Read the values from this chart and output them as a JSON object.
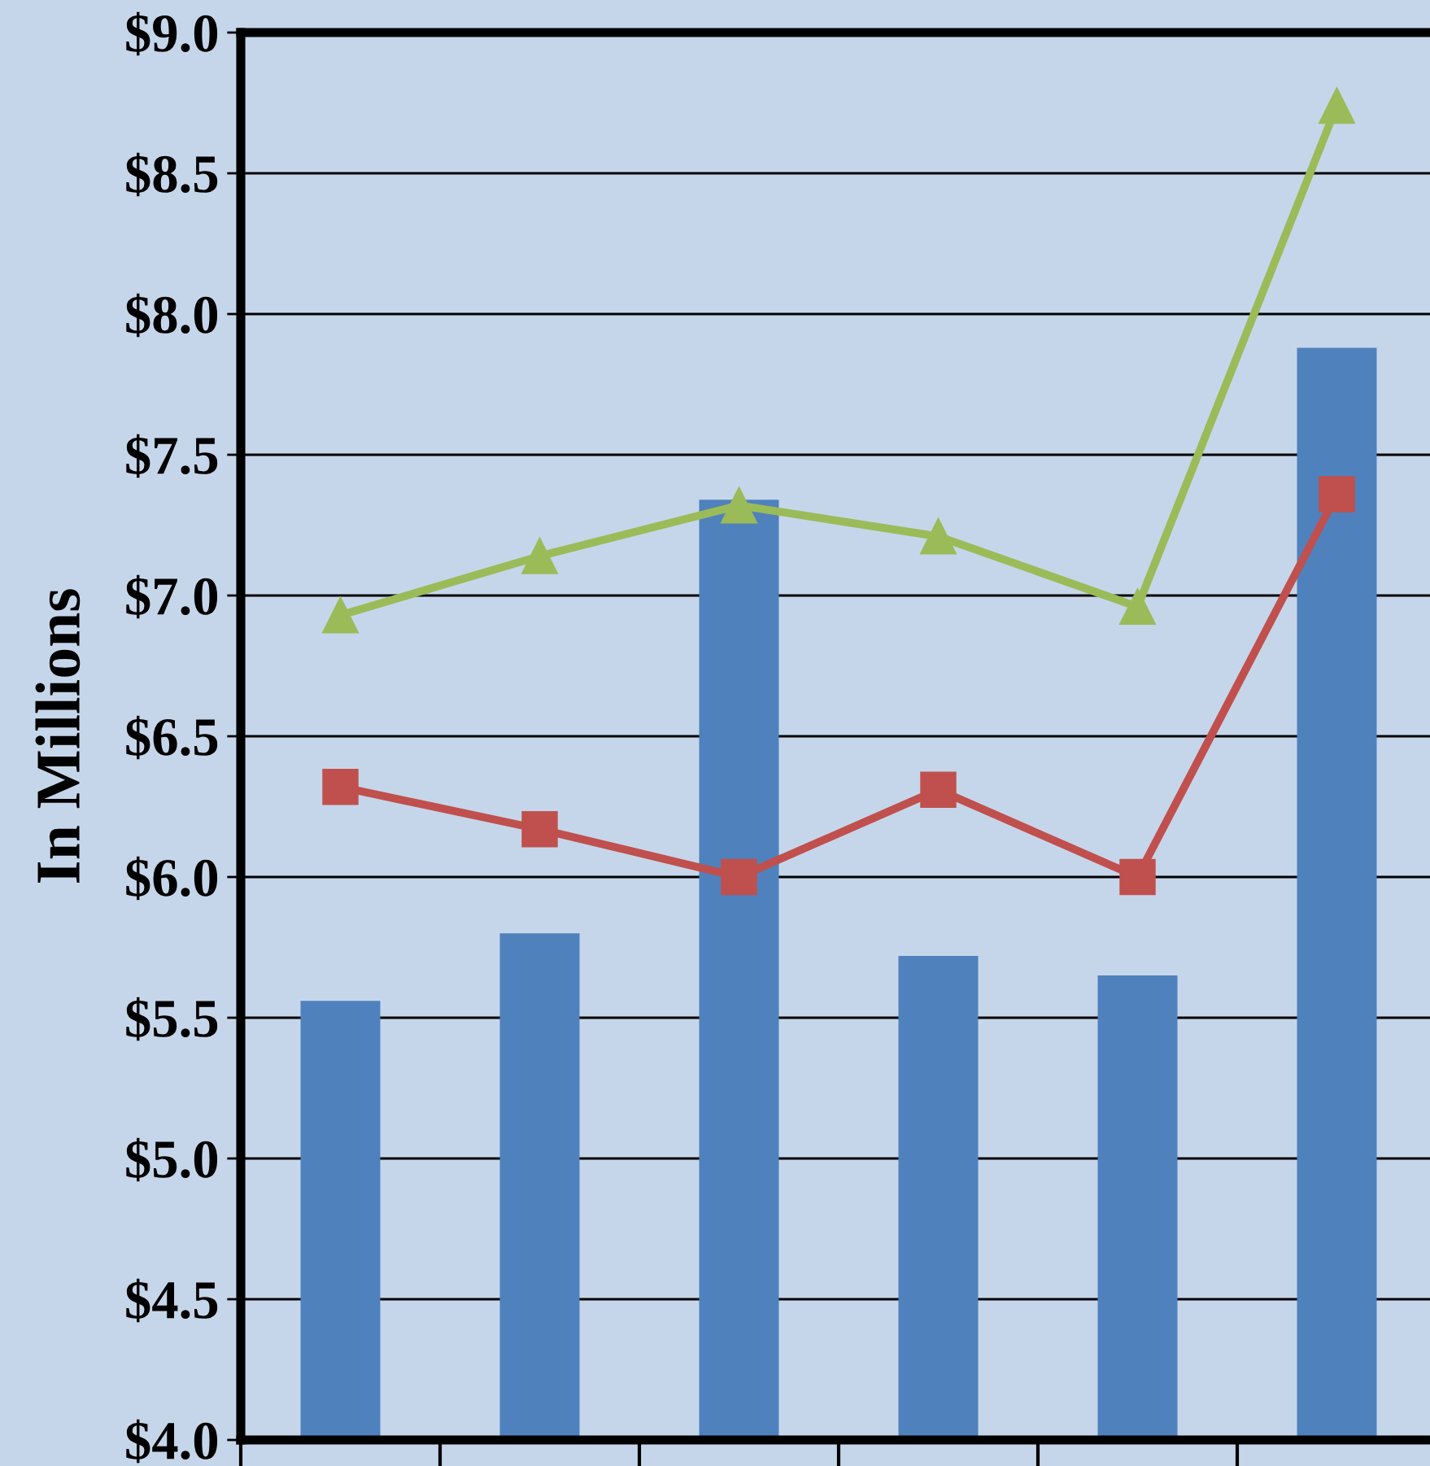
{
  "chart_data": {
    "type": "bar",
    "ylabel": "In Millions",
    "categories": [
      null,
      null,
      null,
      null,
      null,
      null
    ],
    "series": [
      {
        "color": "#4f81bd",
        "values": [
          5.56,
          5.8,
          7.34,
          5.72,
          5.65,
          7.88
        ]
      },
      {
        "type": "line",
        "color": "#c0504d",
        "marker": "square",
        "values": [
          6.32,
          6.17,
          6.0,
          6.31,
          6.0,
          7.36
        ]
      },
      {
        "type": "line",
        "color": "#9bbb59",
        "marker": "triangle",
        "values": [
          6.93,
          7.14,
          7.32,
          7.21,
          6.96,
          8.74
        ]
      }
    ],
    "ylim": [
      4.0,
      9.0
    ],
    "yticks": [
      {
        "value": 4.0,
        "label": "$4.0"
      },
      {
        "value": 4.5,
        "label": "$4.5"
      },
      {
        "value": 5.0,
        "label": "$5.0"
      },
      {
        "value": 5.5,
        "label": "$5.5"
      },
      {
        "value": 6.0,
        "label": "$6.0"
      },
      {
        "value": 6.5,
        "label": "$6.5"
      },
      {
        "value": 7.0,
        "label": "$7.0"
      },
      {
        "value": 7.5,
        "label": "$7.5"
      },
      {
        "value": 8.0,
        "label": "$8.0"
      },
      {
        "value": 8.5,
        "label": "$8.5"
      },
      {
        "value": 9.0,
        "label": "$9.0"
      }
    ],
    "grid": "y",
    "tick_labels": "y"
  }
}
